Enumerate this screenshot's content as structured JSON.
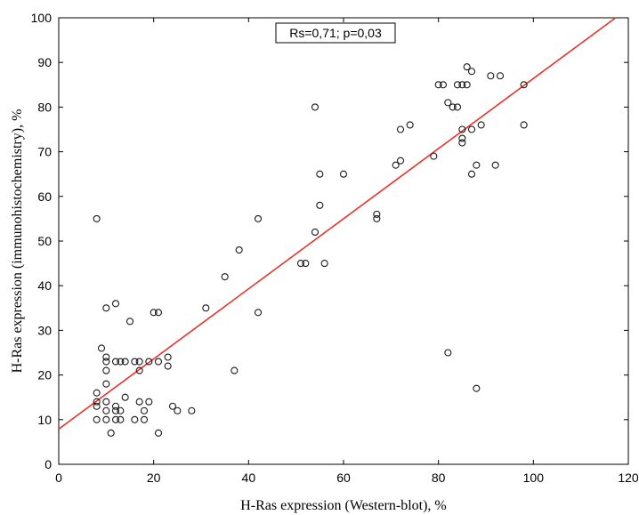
{
  "chart_data": {
    "type": "scatter",
    "title": "",
    "xlabel": "H-Ras expression (Western-blot), %",
    "ylabel": "H-Ras expression (immunohistochemistry), %",
    "xlim": [
      0,
      120
    ],
    "ylim": [
      0,
      100
    ],
    "xticks": [
      0,
      20,
      40,
      60,
      80,
      100,
      120
    ],
    "yticks": [
      0,
      10,
      20,
      30,
      40,
      50,
      60,
      70,
      80,
      90,
      100
    ],
    "grid": false,
    "annotation": "Rs=0,71; p=0,03",
    "fit_line": {
      "intercept": 7.9,
      "slope": 0.785,
      "color": "#e8312a"
    },
    "marker_color": "#1a1a1a",
    "points": [
      [
        8,
        55
      ],
      [
        8,
        16
      ],
      [
        8,
        14
      ],
      [
        8,
        13
      ],
      [
        8,
        10
      ],
      [
        9,
        26
      ],
      [
        10,
        35
      ],
      [
        10,
        24
      ],
      [
        10,
        23
      ],
      [
        10,
        21
      ],
      [
        10,
        18
      ],
      [
        10,
        14
      ],
      [
        10,
        12
      ],
      [
        10,
        10
      ],
      [
        11,
        7
      ],
      [
        12,
        36
      ],
      [
        12,
        13
      ],
      [
        12,
        12
      ],
      [
        12,
        10
      ],
      [
        12,
        23
      ],
      [
        13,
        23
      ],
      [
        13,
        12
      ],
      [
        13,
        10
      ],
      [
        14,
        23
      ],
      [
        14,
        15
      ],
      [
        15,
        32
      ],
      [
        16,
        23
      ],
      [
        16,
        10
      ],
      [
        17,
        23
      ],
      [
        17,
        21
      ],
      [
        17,
        14
      ],
      [
        18,
        12
      ],
      [
        18,
        10
      ],
      [
        19,
        23
      ],
      [
        19,
        14
      ],
      [
        20,
        34
      ],
      [
        21,
        34
      ],
      [
        21,
        23
      ],
      [
        21,
        7
      ],
      [
        23,
        24
      ],
      [
        23,
        22
      ],
      [
        24,
        13
      ],
      [
        25,
        12
      ],
      [
        28,
        12
      ],
      [
        31,
        35
      ],
      [
        35,
        42
      ],
      [
        37,
        21
      ],
      [
        38,
        48
      ],
      [
        42,
        55
      ],
      [
        42,
        34
      ],
      [
        51,
        45
      ],
      [
        52,
        45
      ],
      [
        54,
        80
      ],
      [
        54,
        52
      ],
      [
        55,
        65
      ],
      [
        55,
        58
      ],
      [
        56,
        45
      ],
      [
        60,
        65
      ],
      [
        67,
        56
      ],
      [
        67,
        55
      ],
      [
        71,
        67
      ],
      [
        72,
        75
      ],
      [
        72,
        68
      ],
      [
        74,
        76
      ],
      [
        79,
        69
      ],
      [
        80,
        85
      ],
      [
        81,
        85
      ],
      [
        82,
        81
      ],
      [
        82,
        25
      ],
      [
        83,
        80
      ],
      [
        84,
        85
      ],
      [
        84,
        80
      ],
      [
        85,
        85
      ],
      [
        85,
        75
      ],
      [
        85,
        73
      ],
      [
        85,
        72
      ],
      [
        86,
        89
      ],
      [
        86,
        85
      ],
      [
        87,
        88
      ],
      [
        87,
        75
      ],
      [
        87,
        65
      ],
      [
        88,
        67
      ],
      [
        88,
        17
      ],
      [
        89,
        76
      ],
      [
        91,
        87
      ],
      [
        92,
        67
      ],
      [
        93,
        87
      ],
      [
        98,
        85
      ],
      [
        98,
        76
      ]
    ]
  }
}
